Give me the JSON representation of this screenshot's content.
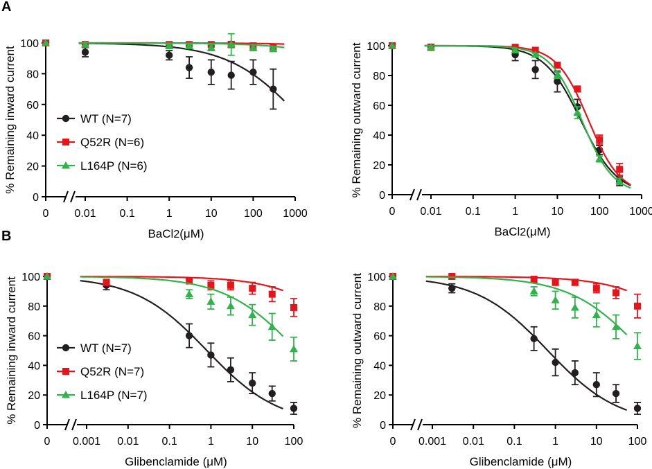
{
  "panels": [
    {
      "label": "A"
    },
    {
      "label": "B"
    }
  ],
  "colors": {
    "wt": "#231f20",
    "q52r": "#e8141c",
    "l164p": "#2fb34a"
  },
  "chart_data": [
    {
      "id": "chart-a-inward",
      "panel": "A",
      "type": "line",
      "subtype": "dose-response scatter with fitted curves and error bars",
      "xscale": "log",
      "xlabel_main": "BaCl",
      "xlabel_sub": "2",
      "xlabel_unit": "(μM)",
      "ylabel": "% Remaining inward current",
      "xlim": [
        0.001,
        1000
      ],
      "ylim": [
        0,
        100
      ],
      "zero_label": "0",
      "xticks": [
        0.01,
        0.1,
        1,
        10,
        100,
        1000
      ],
      "xtick_labels": [
        "0.01",
        "0.1",
        "1",
        "10",
        "100",
        "1000"
      ],
      "yticks": [
        0,
        20,
        40,
        60,
        80,
        100
      ],
      "ytick_labels": [
        "0",
        "20",
        "40",
        "60",
        "80",
        "100"
      ],
      "legend_position": "left-middle",
      "series": [
        {
          "key": "wt",
          "name": "WT (N=7)",
          "marker": "circle",
          "x": [
            0.01,
            1,
            3,
            10,
            30,
            100,
            300
          ],
          "y": [
            94,
            92,
            84,
            81,
            79,
            81,
            70
          ],
          "err": [
            3,
            3,
            7,
            8,
            9,
            8,
            13
          ],
          "zero_y": 100,
          "zero_err": 1,
          "fit": {
            "ic50": 1500,
            "hill": 0.5,
            "top": 100,
            "bottom": 0
          }
        },
        {
          "key": "q52r",
          "name": "Q52R (N=6)",
          "marker": "square",
          "x": [
            0.01,
            1,
            3,
            10,
            30,
            100,
            300
          ],
          "y": [
            99,
            99,
            99,
            99,
            99,
            98,
            97
          ],
          "err": [
            1,
            1,
            1,
            1,
            2,
            2,
            1
          ],
          "zero_y": 100,
          "zero_err": 1,
          "fit": {
            "ic50": 10000000,
            "hill": 0.5,
            "top": 100,
            "bottom": 0
          }
        },
        {
          "key": "l164p",
          "name": "L164P (N=6)",
          "marker": "triangle",
          "x": [
            0.01,
            1,
            3,
            10,
            30,
            100,
            300
          ],
          "y": [
            99,
            98,
            98,
            97,
            99,
            97,
            96
          ],
          "err": [
            1,
            1,
            1,
            2,
            7,
            2,
            1
          ],
          "zero_y": 100,
          "zero_err": 1,
          "fit": {
            "ic50": 600000,
            "hill": 0.5,
            "top": 100,
            "bottom": 0
          }
        }
      ]
    },
    {
      "id": "chart-a-outward",
      "panel": "A",
      "type": "line",
      "subtype": "dose-response scatter with fitted curves and error bars",
      "xscale": "log",
      "xlabel_main": "BaCl",
      "xlabel_sub": "2",
      "xlabel_unit": "(μM)",
      "ylabel": "% Remaining outward current",
      "xlim": [
        0.001,
        1000
      ],
      "ylim": [
        0,
        100
      ],
      "zero_label": "0",
      "xticks": [
        0.01,
        0.1,
        1,
        10,
        100,
        1000
      ],
      "xtick_labels": [
        "0.01",
        "0.1",
        "1",
        "10",
        "100",
        "1000"
      ],
      "yticks": [
        0,
        20,
        40,
        60,
        80,
        100
      ],
      "ytick_labels": [
        "0",
        "20",
        "40",
        "60",
        "80",
        "100"
      ],
      "legend_position": "none",
      "series": [
        {
          "key": "wt",
          "name": "WT (N=7)",
          "marker": "circle",
          "x": [
            0.01,
            1,
            3,
            10,
            30,
            100,
            300
          ],
          "y": [
            99,
            94,
            84,
            76,
            59,
            30,
            9
          ],
          "err": [
            2,
            4,
            6,
            7,
            5,
            3,
            3
          ],
          "zero_y": 100,
          "zero_err": 1,
          "fit": {
            "ic50": 36,
            "hill": 1.0,
            "top": 100,
            "bottom": 0
          }
        },
        {
          "key": "q52r",
          "name": "Q52R (N=6)",
          "marker": "square",
          "x": [
            0.01,
            1,
            3,
            10,
            30,
            100,
            300
          ],
          "y": [
            99,
            99,
            97,
            87,
            71,
            37,
            17
          ],
          "err": [
            1,
            1,
            1,
            1,
            1,
            3,
            4
          ],
          "zero_y": 100,
          "zero_err": 1,
          "fit": {
            "ic50": 55,
            "hill": 1.15,
            "top": 100,
            "bottom": 0
          }
        },
        {
          "key": "l164p",
          "name": "L164P (N=6)",
          "marker": "triangle",
          "x": [
            0.01,
            1,
            3,
            10,
            30,
            100,
            300
          ],
          "y": [
            99,
            97,
            94,
            80,
            55,
            24,
            9
          ],
          "err": [
            1,
            1,
            1,
            2,
            4,
            2,
            2
          ],
          "zero_y": 100,
          "zero_err": 1,
          "fit": {
            "ic50": 38,
            "hill": 1.15,
            "top": 100,
            "bottom": 0
          }
        }
      ]
    },
    {
      "id": "chart-b-inward",
      "panel": "B",
      "type": "line",
      "subtype": "dose-response scatter with fitted curves and error bars",
      "xscale": "log",
      "xlabel_main": "Glibenclamide (μM)",
      "xlabel_sub": "",
      "xlabel_unit": "",
      "ylabel": "% Remaining inward current",
      "xlim": [
        0.0001,
        100
      ],
      "ylim": [
        0,
        100
      ],
      "zero_label": "0",
      "xticks": [
        0.001,
        0.01,
        0.1,
        1,
        10,
        100
      ],
      "xtick_labels": [
        "0.001",
        "0.01",
        "0.1",
        "1",
        "10",
        "100"
      ],
      "yticks": [
        0,
        20,
        40,
        60,
        80,
        100
      ],
      "ytick_labels": [
        "0",
        "20",
        "40",
        "60",
        "80",
        "100"
      ],
      "legend_position": "left-lower",
      "series": [
        {
          "key": "wt",
          "name": "WT (N=7)",
          "marker": "circle",
          "x": [
            0.003,
            0.3,
            1,
            3,
            10,
            30,
            100
          ],
          "y": [
            94,
            60,
            47,
            37,
            28,
            21,
            11
          ],
          "err": [
            3,
            8,
            8,
            8,
            7,
            5,
            4
          ],
          "zero_y": 100,
          "zero_err": 1,
          "fit": {
            "ic50": 0.8,
            "hill": 0.5,
            "top": 100,
            "bottom": 0
          }
        },
        {
          "key": "q52r",
          "name": "Q52R (N=7)",
          "marker": "square",
          "x": [
            0.003,
            0.3,
            1,
            3,
            10,
            30,
            100
          ],
          "y": [
            96,
            97,
            94,
            94,
            92,
            88,
            79
          ],
          "err": [
            2,
            2,
            3,
            3,
            4,
            5,
            6
          ],
          "zero_y": 100,
          "zero_err": 1,
          "fit": {
            "ic50": 5000,
            "hill": 0.5,
            "top": 100,
            "bottom": 0
          }
        },
        {
          "key": "l164p",
          "name": "L164P (N=7)",
          "marker": "triangle",
          "x": [
            0.3,
            1,
            3,
            10,
            30,
            100
          ],
          "y": [
            88,
            83,
            80,
            74,
            66,
            51
          ],
          "err": [
            3,
            5,
            6,
            7,
            9,
            8
          ],
          "zero_y": 100,
          "zero_err": 1,
          "fit": {
            "ic50": 120,
            "hill": 0.5,
            "top": 100,
            "bottom": 0
          }
        }
      ]
    },
    {
      "id": "chart-b-outward",
      "panel": "B",
      "type": "line",
      "subtype": "dose-response scatter with fitted curves and error bars",
      "xscale": "log",
      "xlabel_main": "Glibenclamide (μM)",
      "xlabel_sub": "",
      "xlabel_unit": "",
      "ylabel": "% Remaining outward current",
      "xlim": [
        0.0001,
        100
      ],
      "ylim": [
        0,
        100
      ],
      "zero_label": "0",
      "xticks": [
        0.001,
        0.01,
        0.1,
        1,
        10,
        100
      ],
      "xtick_labels": [
        "0.001",
        "0.01",
        "0.1",
        "1",
        "10",
        "100"
      ],
      "yticks": [
        0,
        20,
        40,
        60,
        80,
        100
      ],
      "ytick_labels": [
        "0",
        "20",
        "40",
        "60",
        "80",
        "100"
      ],
      "legend_position": "none",
      "series": [
        {
          "key": "wt",
          "name": "WT (N=7)",
          "marker": "circle",
          "x": [
            0.003,
            0.3,
            1,
            3,
            10,
            30,
            100
          ],
          "y": [
            92,
            58,
            42,
            35,
            27,
            21,
            11
          ],
          "err": [
            3,
            8,
            9,
            8,
            8,
            6,
            4
          ],
          "zero_y": 100,
          "zero_err": 1,
          "fit": {
            "ic50": 0.65,
            "hill": 0.5,
            "top": 100,
            "bottom": 0
          }
        },
        {
          "key": "q52r",
          "name": "Q52R (N=7)",
          "marker": "square",
          "x": [
            0.003,
            0.3,
            1,
            3,
            10,
            30,
            100
          ],
          "y": [
            100,
            98,
            96,
            96,
            92,
            89,
            80
          ],
          "err": [
            1,
            2,
            2,
            2,
            3,
            4,
            8
          ],
          "zero_y": 100,
          "zero_err": 1,
          "fit": {
            "ic50": 5000,
            "hill": 0.5,
            "top": 100,
            "bottom": 0
          }
        },
        {
          "key": "l164p",
          "name": "L164P (N=7)",
          "marker": "triangle",
          "x": [
            0.3,
            1,
            3,
            10,
            30,
            100
          ],
          "y": [
            90,
            84,
            79,
            74,
            66,
            53
          ],
          "err": [
            3,
            6,
            7,
            8,
            8,
            9
          ],
          "zero_y": 100,
          "zero_err": 1,
          "fit": {
            "ic50": 130,
            "hill": 0.5,
            "top": 100,
            "bottom": 0
          }
        }
      ]
    }
  ]
}
